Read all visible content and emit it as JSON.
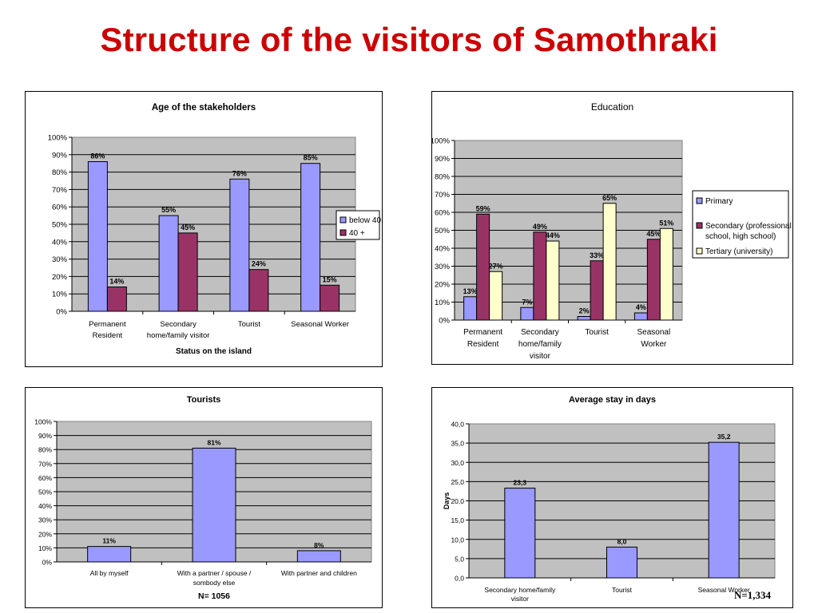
{
  "slide": {
    "title": "Structure of the visitors of Samothraki",
    "footnote": "N=1,334"
  },
  "colors": {
    "title": "#cc0000",
    "plot_bg": "#c0c0c0",
    "series1": "#9999ff",
    "series2": "#993366",
    "series3": "#ffffcc",
    "plain_bg": "#ffffff"
  },
  "chart_data": [
    {
      "type": "bar",
      "title": "Age  of the stakeholders",
      "xlabel": "Status on the island",
      "ylabel": "",
      "ylim": [
        0,
        100
      ],
      "yticks": [
        "0%",
        "10%",
        "20%",
        "30%",
        "40%",
        "50%",
        "60%",
        "70%",
        "80%",
        "90%",
        "100%"
      ],
      "categories": [
        "Permanent|Resident",
        "Secondary|home/family visitor",
        "Tourist",
        "Seasonal Worker"
      ],
      "series": [
        {
          "name": "below 40",
          "values": [
            86,
            55,
            76,
            85
          ],
          "labels": [
            "86%",
            "55%",
            "76%",
            "85%"
          ]
        },
        {
          "name": "40 +",
          "values": [
            14,
            45,
            24,
            15
          ],
          "labels": [
            "14%",
            "45%",
            "24%",
            "15%"
          ]
        }
      ],
      "grid": true,
      "legend": "right"
    },
    {
      "type": "bar",
      "title": "Education",
      "xlabel": "",
      "ylabel": "",
      "ylim": [
        0,
        100
      ],
      "yticks": [
        "0%",
        "10%",
        "20%",
        "30%",
        "40%",
        "50%",
        "60%",
        "70%",
        "80%",
        "90%",
        "100%"
      ],
      "categories": [
        "Permanent|Resident",
        "Secondary|home/family|visitor",
        "Tourist",
        "Seasonal|Worker"
      ],
      "series": [
        {
          "name": "Primary",
          "values": [
            13,
            7,
            2,
            4
          ],
          "labels": [
            "13%",
            "7%",
            "2%",
            "4%"
          ]
        },
        {
          "name": "Secondary (professional|school, high school)",
          "values": [
            59,
            49,
            33,
            45
          ],
          "labels": [
            "59%",
            "49%",
            "33%",
            "45%"
          ]
        },
        {
          "name": "Tertiary (university)",
          "values": [
            27,
            44,
            65,
            51
          ],
          "labels": [
            "27%",
            "44%",
            "65%",
            "51%"
          ]
        }
      ],
      "grid": true,
      "legend": "right"
    },
    {
      "type": "bar",
      "title": "Tourists",
      "xlabel": "N= 1056",
      "ylabel": "",
      "ylim": [
        0,
        100
      ],
      "yticks": [
        "0%",
        "10%",
        "20%",
        "30%",
        "40%",
        "50%",
        "60%",
        "70%",
        "80%",
        "90%",
        "100%"
      ],
      "categories": [
        "All by myself",
        "With a partner / spouse /|sombody else",
        "With partner and children"
      ],
      "series": [
        {
          "name": "",
          "values": [
            11,
            81,
            8
          ],
          "labels": [
            "11%",
            "81%",
            "8%"
          ]
        }
      ],
      "grid": true,
      "legend": "none"
    },
    {
      "type": "bar",
      "title": "Average stay in days",
      "xlabel": "",
      "ylabel": "Days",
      "ylim": [
        0,
        40
      ],
      "yticks": [
        "0,0",
        "5,0",
        "10,0",
        "15,0",
        "20,0",
        "25,0",
        "30,0",
        "35,0",
        "40,0"
      ],
      "categories": [
        "Secondary home/family|visitor",
        "Tourist",
        "Seasonal Worker"
      ],
      "series": [
        {
          "name": "",
          "values": [
            23.3,
            8.0,
            35.2
          ],
          "labels": [
            "23,3",
            "8,0",
            "35,2"
          ]
        }
      ],
      "grid": true,
      "legend": "none"
    }
  ]
}
